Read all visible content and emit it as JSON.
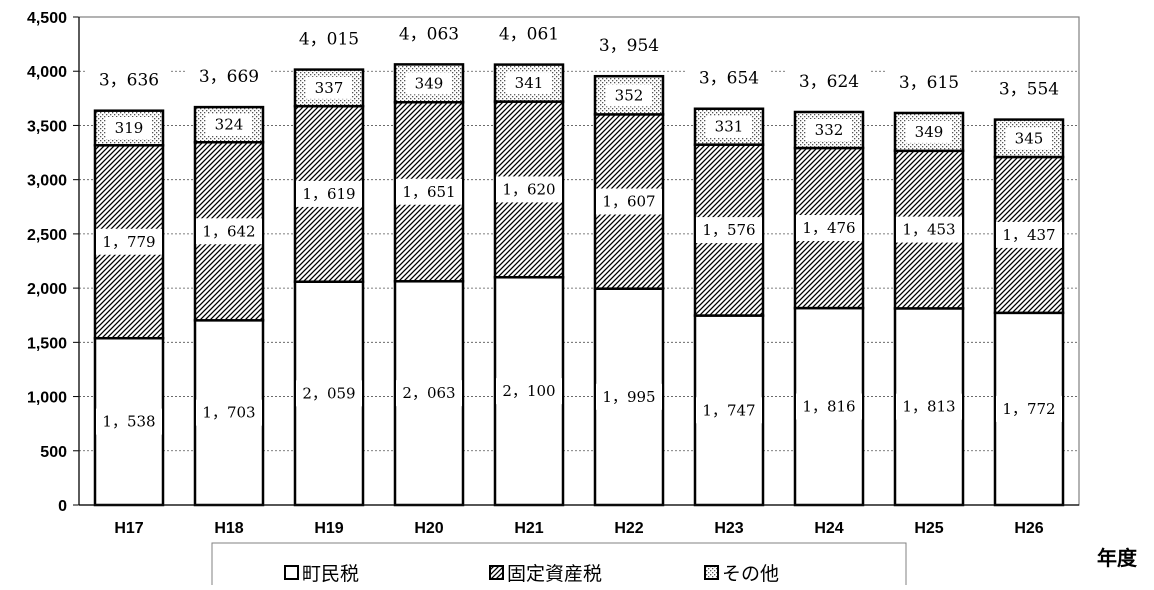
{
  "chart_data": {
    "type": "bar",
    "stacked": true,
    "title": "",
    "xlabel": "年度",
    "ylabel": "",
    "ylim": [
      0,
      4500
    ],
    "yticks": [
      0,
      500,
      1000,
      1500,
      2000,
      2500,
      3000,
      3500,
      4000,
      4500
    ],
    "ytick_labels": [
      "0",
      "500",
      "1,000",
      "1,500",
      "2,000",
      "2,500",
      "3,000",
      "3,500",
      "4,000",
      "4,500"
    ],
    "grid": true,
    "legend_position": "bottom",
    "categories": [
      "H17",
      "H18",
      "H19",
      "H20",
      "H21",
      "H22",
      "H23",
      "H24",
      "H25",
      "H26"
    ],
    "series": [
      {
        "name": "町民税",
        "pattern": "plain",
        "color": "#ffffff",
        "values": [
          1538,
          1703,
          2059,
          2063,
          2100,
          1995,
          1747,
          1816,
          1813,
          1772
        ],
        "labels": [
          "1，538",
          "1，703",
          "2，059",
          "2，063",
          "2，100",
          "1，995",
          "1，747",
          "1，816",
          "1，813",
          "1，772"
        ]
      },
      {
        "name": "固定資産税",
        "pattern": "diagonal-hatch",
        "color": "#000000",
        "values": [
          1779,
          1642,
          1619,
          1651,
          1620,
          1607,
          1576,
          1476,
          1453,
          1437
        ],
        "labels": [
          "1，779",
          "1，642",
          "1，619",
          "1，651",
          "1，620",
          "1，607",
          "1，576",
          "1，476",
          "1，453",
          "1，437"
        ]
      },
      {
        "name": "その他",
        "pattern": "dotted",
        "color": "#000000",
        "values": [
          319,
          324,
          337,
          349,
          341,
          352,
          331,
          332,
          349,
          345
        ],
        "labels": [
          "319",
          "324",
          "337",
          "349",
          "341",
          "352",
          "331",
          "332",
          "349",
          "345"
        ]
      }
    ],
    "totals": [
      3636,
      3669,
      4015,
      4063,
      4061,
      3954,
      3654,
      3624,
      3615,
      3554
    ],
    "total_labels": [
      "3，636",
      "3，669",
      "4，015",
      "4，063",
      "4，061",
      "3，954",
      "3，654",
      "3，624",
      "3，615",
      "3，554"
    ]
  },
  "legend": {
    "items": [
      {
        "label": "町民税"
      },
      {
        "label": "固定資産税"
      },
      {
        "label": "その他"
      }
    ]
  }
}
